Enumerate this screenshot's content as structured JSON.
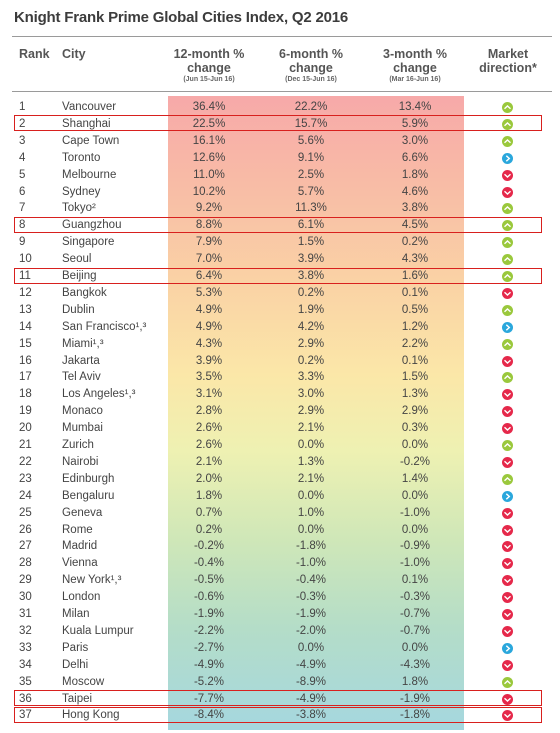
{
  "title": "Knight Frank Prime Global Cities Index, Q2 2016",
  "headers": {
    "rank": "Rank",
    "city": "City",
    "col1": "12-month % change",
    "col1_sub": "(Jun 15-Jun 16)",
    "col2": "6-month % change",
    "col2_sub": "(Dec 15-Jun 16)",
    "col3": "3-month % change",
    "col3_sub": "(Mar 16-Jun 16)",
    "direction": "Market direction*"
  },
  "colors": {
    "up": "#9ac83c",
    "steady": "#2aa7dc",
    "down": "#e5284a",
    "highlight": "#d8201e"
  },
  "rows": [
    {
      "rank": "1",
      "city": "Vancouver",
      "m12": "36.4%",
      "m6": "22.2%",
      "m3": "13.4%",
      "dir": "up"
    },
    {
      "rank": "2",
      "city": "Shanghai",
      "m12": "22.5%",
      "m6": "15.7%",
      "m3": "5.9%",
      "dir": "up"
    },
    {
      "rank": "3",
      "city": "Cape Town",
      "m12": "16.1%",
      "m6": "5.6%",
      "m3": "3.0%",
      "dir": "up"
    },
    {
      "rank": "4",
      "city": "Toronto",
      "m12": "12.6%",
      "m6": "9.1%",
      "m3": "6.6%",
      "dir": "steady"
    },
    {
      "rank": "5",
      "city": "Melbourne",
      "m12": "11.0%",
      "m6": "2.5%",
      "m3": "1.8%",
      "dir": "down"
    },
    {
      "rank": "6",
      "city": "Sydney",
      "m12": "10.2%",
      "m6": "5.7%",
      "m3": "4.6%",
      "dir": "down"
    },
    {
      "rank": "7",
      "city": "Tokyo²",
      "m12": "9.2%",
      "m6": "11.3%",
      "m3": "3.8%",
      "dir": "up"
    },
    {
      "rank": "8",
      "city": "Guangzhou",
      "m12": "8.8%",
      "m6": "6.1%",
      "m3": "4.5%",
      "dir": "up"
    },
    {
      "rank": "9",
      "city": "Singapore",
      "m12": "7.9%",
      "m6": "1.5%",
      "m3": "0.2%",
      "dir": "up"
    },
    {
      "rank": "10",
      "city": "Seoul",
      "m12": "7.0%",
      "m6": "3.9%",
      "m3": "4.3%",
      "dir": "up"
    },
    {
      "rank": "11",
      "city": "Beijing",
      "m12": "6.4%",
      "m6": "3.8%",
      "m3": "1.6%",
      "dir": "up"
    },
    {
      "rank": "12",
      "city": "Bangkok",
      "m12": "5.3%",
      "m6": "0.2%",
      "m3": "0.1%",
      "dir": "down"
    },
    {
      "rank": "13",
      "city": "Dublin",
      "m12": "4.9%",
      "m6": "1.9%",
      "m3": "0.5%",
      "dir": "up"
    },
    {
      "rank": "14",
      "city": "San Francisco¹,³",
      "m12": "4.9%",
      "m6": "4.2%",
      "m3": "1.2%",
      "dir": "steady"
    },
    {
      "rank": "15",
      "city": "Miami¹,³",
      "m12": "4.3%",
      "m6": "2.9%",
      "m3": "2.2%",
      "dir": "up"
    },
    {
      "rank": "16",
      "city": "Jakarta",
      "m12": "3.9%",
      "m6": "0.2%",
      "m3": "0.1%",
      "dir": "down"
    },
    {
      "rank": "17",
      "city": "Tel Aviv",
      "m12": "3.5%",
      "m6": "3.3%",
      "m3": "1.5%",
      "dir": "up"
    },
    {
      "rank": "18",
      "city": "Los Angeles¹,³",
      "m12": "3.1%",
      "m6": "3.0%",
      "m3": "1.3%",
      "dir": "down"
    },
    {
      "rank": "19",
      "city": "Monaco",
      "m12": "2.8%",
      "m6": "2.9%",
      "m3": "2.9%",
      "dir": "down"
    },
    {
      "rank": "20",
      "city": "Mumbai",
      "m12": "2.6%",
      "m6": "2.1%",
      "m3": "0.3%",
      "dir": "down"
    },
    {
      "rank": "21",
      "city": "Zurich",
      "m12": "2.6%",
      "m6": "0.0%",
      "m3": "0.0%",
      "dir": "up"
    },
    {
      "rank": "22",
      "city": "Nairobi",
      "m12": "2.1%",
      "m6": "1.3%",
      "m3": "-0.2%",
      "dir": "down"
    },
    {
      "rank": "23",
      "city": "Edinburgh",
      "m12": "2.0%",
      "m6": "2.1%",
      "m3": "1.4%",
      "dir": "up"
    },
    {
      "rank": "24",
      "city": "Bengaluru",
      "m12": "1.8%",
      "m6": "0.0%",
      "m3": "0.0%",
      "dir": "steady"
    },
    {
      "rank": "25",
      "city": "Geneva",
      "m12": "0.7%",
      "m6": "1.0%",
      "m3": "-1.0%",
      "dir": "down"
    },
    {
      "rank": "26",
      "city": "Rome",
      "m12": "0.2%",
      "m6": "0.0%",
      "m3": "0.0%",
      "dir": "down"
    },
    {
      "rank": "27",
      "city": "Madrid",
      "m12": "-0.2%",
      "m6": "-1.8%",
      "m3": "-0.9%",
      "dir": "down"
    },
    {
      "rank": "28",
      "city": "Vienna",
      "m12": "-0.4%",
      "m6": "-1.0%",
      "m3": "-1.0%",
      "dir": "down"
    },
    {
      "rank": "29",
      "city": "New York¹,³",
      "m12": "-0.5%",
      "m6": "-0.4%",
      "m3": "0.1%",
      "dir": "down"
    },
    {
      "rank": "30",
      "city": "London",
      "m12": "-0.6%",
      "m6": "-0.3%",
      "m3": "-0.3%",
      "dir": "down"
    },
    {
      "rank": "31",
      "city": "Milan",
      "m12": "-1.9%",
      "m6": "-1.9%",
      "m3": "-0.7%",
      "dir": "down"
    },
    {
      "rank": "32",
      "city": "Kuala Lumpur",
      "m12": "-2.2%",
      "m6": "-2.0%",
      "m3": "-0.7%",
      "dir": "down"
    },
    {
      "rank": "33",
      "city": "Paris",
      "m12": "-2.7%",
      "m6": "0.0%",
      "m3": "0.0%",
      "dir": "steady"
    },
    {
      "rank": "34",
      "city": "Delhi",
      "m12": "-4.9%",
      "m6": "-4.9%",
      "m3": "-4.3%",
      "dir": "down"
    },
    {
      "rank": "35",
      "city": "Moscow",
      "m12": "-5.2%",
      "m6": "-8.9%",
      "m3": "1.8%",
      "dir": "up"
    },
    {
      "rank": "36",
      "city": "Taipei",
      "m12": "-7.7%",
      "m6": "-4.9%",
      "m3": "-1.9%",
      "dir": "down"
    },
    {
      "rank": "37",
      "city": "Hong Kong",
      "m12": "-8.4%",
      "m6": "-3.8%",
      "m3": "-1.8%",
      "dir": "down"
    }
  ],
  "highlighted_ranks": [
    "2",
    "8",
    "11",
    "36",
    "37"
  ]
}
